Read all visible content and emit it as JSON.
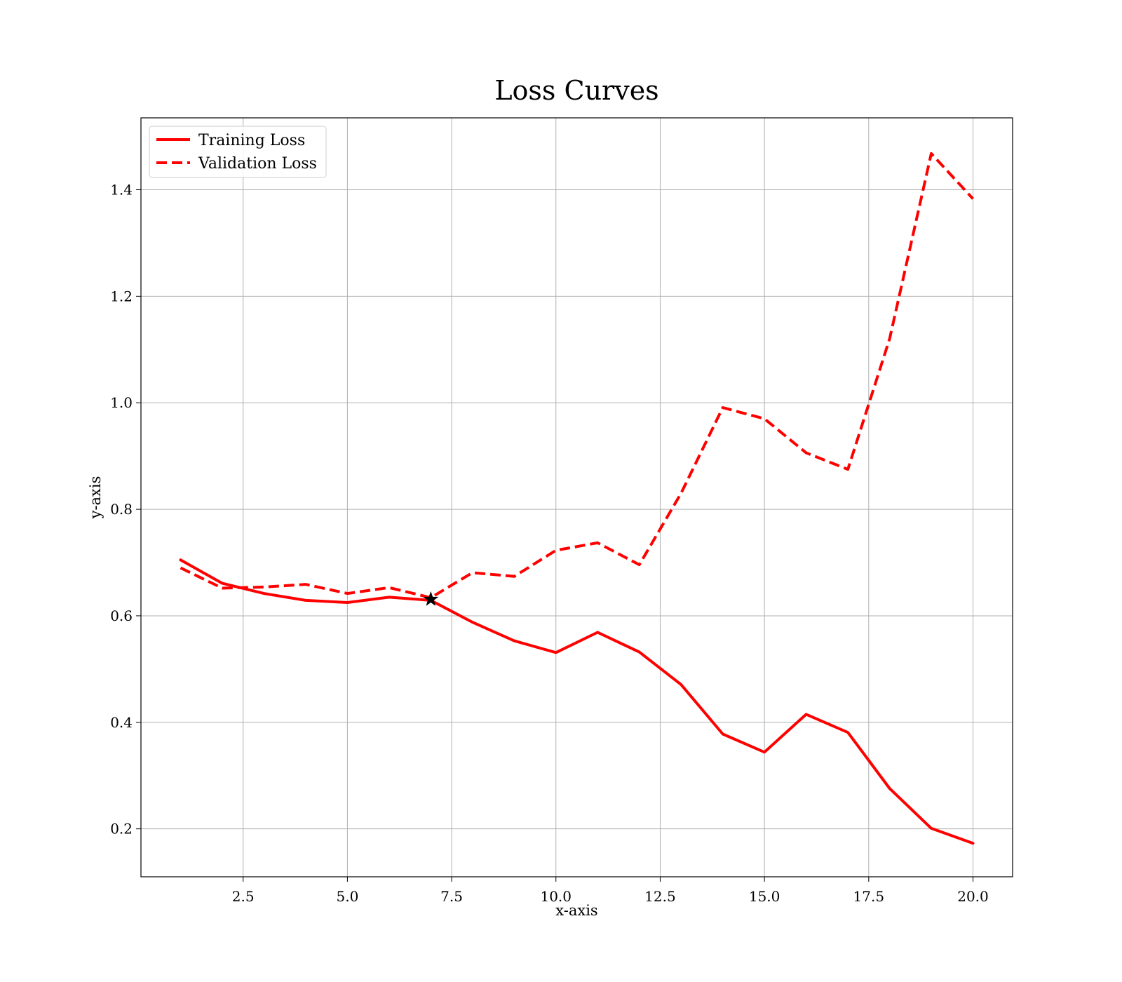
{
  "chart_data": {
    "type": "line",
    "title": "Loss Curves",
    "xlabel": "x-axis",
    "ylabel": "y-axis",
    "xlim": [
      0.05,
      20.95
    ],
    "ylim": [
      0.11,
      1.535
    ],
    "x_ticks": [
      2.5,
      5.0,
      7.5,
      10.0,
      12.5,
      15.0,
      17.5,
      20.0
    ],
    "x_tick_labels": [
      "2.5",
      "5.0",
      "7.5",
      "10.0",
      "12.5",
      "15.0",
      "17.5",
      "20.0"
    ],
    "y_ticks": [
      0.2,
      0.4,
      0.6,
      0.8,
      1.0,
      1.2,
      1.4
    ],
    "y_tick_labels": [
      "0.2",
      "0.4",
      "0.6",
      "0.8",
      "1.0",
      "1.2",
      "1.4"
    ],
    "grid": true,
    "legend_position": "top-left",
    "x": [
      1,
      2,
      3,
      4,
      5,
      6,
      7,
      8,
      9,
      10,
      11,
      12,
      13,
      14,
      15,
      16,
      17,
      18,
      19,
      20
    ],
    "series": [
      {
        "name": "Training Loss",
        "style": "solid",
        "color": "#ff0000",
        "values": [
          0.705,
          0.661,
          0.642,
          0.629,
          0.625,
          0.635,
          0.629,
          0.588,
          0.553,
          0.531,
          0.569,
          0.532,
          0.471,
          0.378,
          0.344,
          0.415,
          0.381,
          0.276,
          0.201,
          0.173
        ]
      },
      {
        "name": "Validation Loss",
        "style": "dashed",
        "color": "#ff0000",
        "values": [
          0.69,
          0.652,
          0.654,
          0.659,
          0.642,
          0.653,
          0.634,
          0.681,
          0.674,
          0.723,
          0.737,
          0.696,
          0.83,
          0.991,
          0.97,
          0.906,
          0.875,
          1.12,
          1.468,
          1.383
        ]
      }
    ],
    "marker": {
      "x": 7,
      "y": 0.631,
      "shape": "star",
      "color": "#000000"
    }
  }
}
